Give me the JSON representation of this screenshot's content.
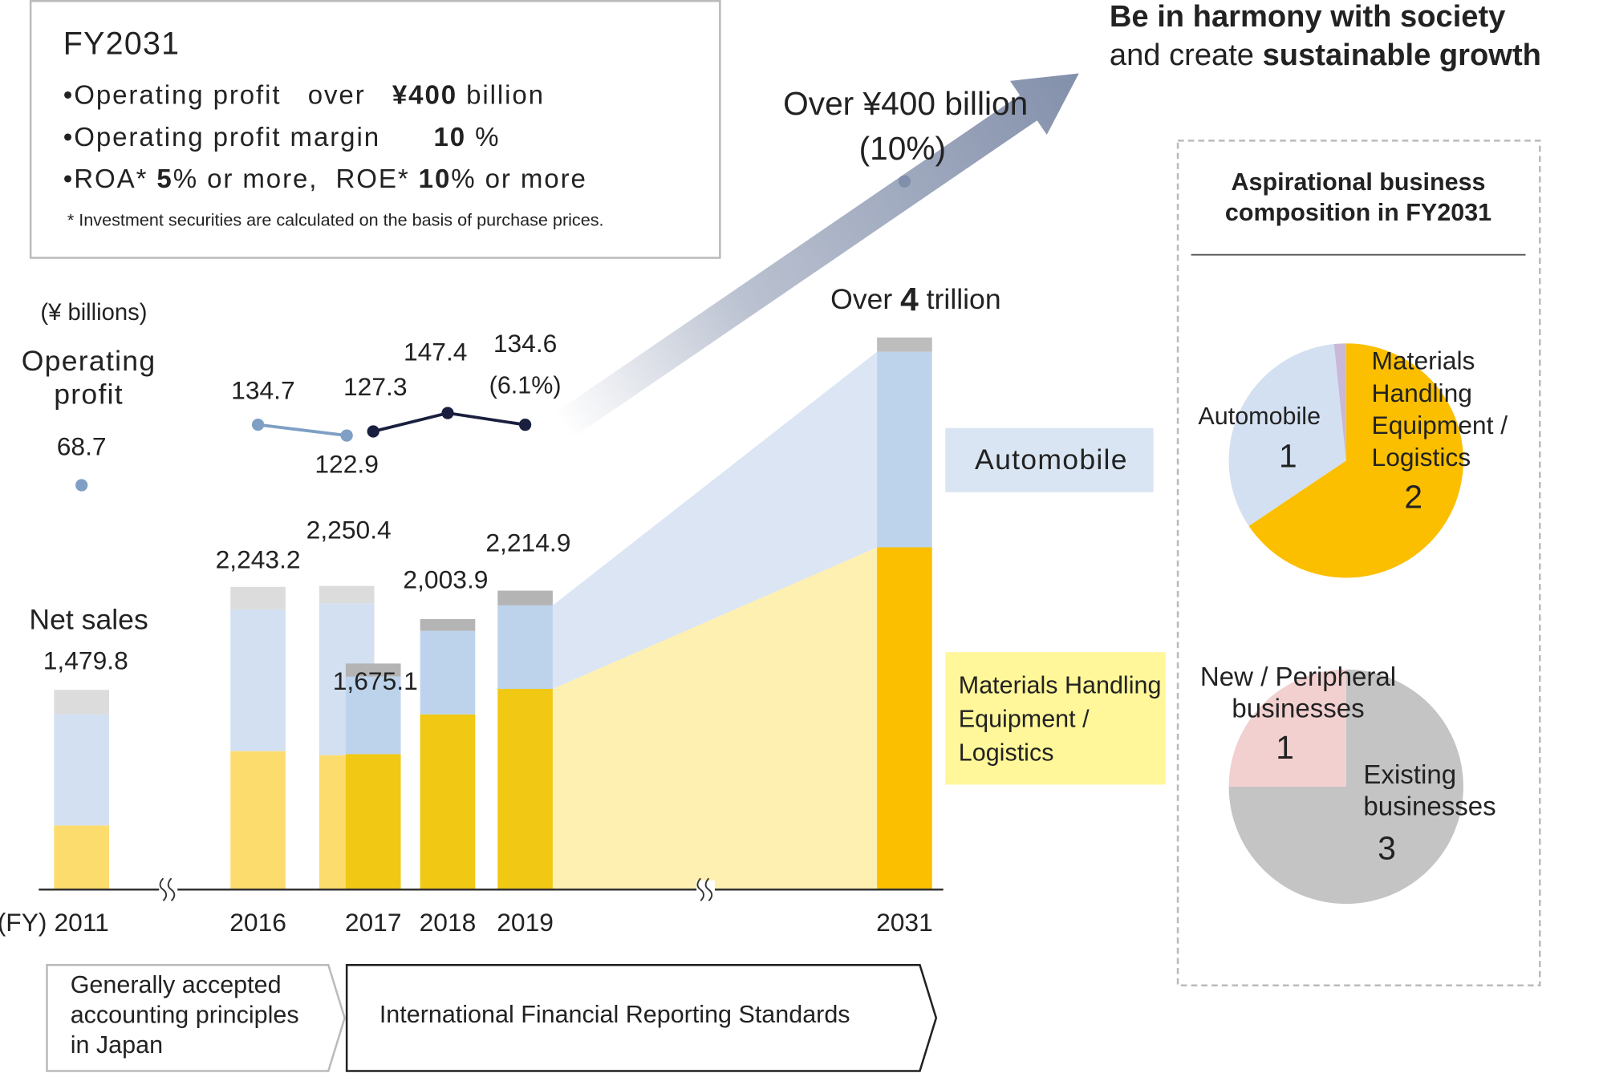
{
  "headline": {
    "lines": [
      [
        {
          "text": "Be in harmony with society",
          "bold": true
        }
      ],
      [
        {
          "text": "and create ",
          "bold": false
        },
        {
          "text": "sustainable growth",
          "bold": true
        }
      ]
    ]
  },
  "targets": {
    "title": "FY2031",
    "items": [
      [
        {
          "text": "•Operating profit   over   ",
          "bold": false
        },
        {
          "text": "¥400",
          "bold": true
        },
        {
          "text": " billion",
          "bold": false
        }
      ],
      [
        {
          "text": "•Operating profit margin      ",
          "bold": false
        },
        {
          "text": "10",
          "bold": true
        },
        {
          "text": " %",
          "bold": false
        }
      ],
      [
        {
          "text": "•ROA* ",
          "bold": false
        },
        {
          "text": "5",
          "bold": true
        },
        {
          "text": "% or more,  ROE* ",
          "bold": false
        },
        {
          "text": "10",
          "bold": true
        },
        {
          "text": "% or more",
          "bold": false
        }
      ]
    ],
    "note": "* Investment securities are calculated on the basis of purchase prices."
  },
  "standards": {
    "jgaap": [
      "Generally accepted",
      "accounting principles",
      "in Japan"
    ],
    "ifrs": "International Financial Reporting Standards"
  },
  "chart_data": [
    {
      "type": "line",
      "title": [
        "Operating",
        "profit"
      ],
      "unit": "(¥ billions)",
      "ylim": [
        40,
        160
      ],
      "series": [
        {
          "color": "#7f9fc4",
          "values": [
            68.7,
            null,
            null,
            null,
            null,
            null,
            null
          ]
        },
        {
          "color": "#7f9fc4",
          "values": [
            null,
            134.7,
            122.9,
            null,
            null,
            null,
            null
          ]
        },
        {
          "color": "#1a1f3f",
          "values": [
            null,
            null,
            null,
            127.3,
            147.4,
            134.6,
            null
          ]
        }
      ],
      "margin_label": "(6.1%)",
      "target": {
        "value": 400,
        "value_label": "Over ¥400 billion",
        "note": "(10%)",
        "color": "#8090aa"
      }
    },
    {
      "type": "bar",
      "title": "Net sales",
      "x_prefix": "(FY)",
      "categories": [
        "2011",
        "2016",
        null,
        "2017",
        "2018",
        "2019",
        "2031"
      ],
      "ylim": [
        0,
        4500
      ],
      "series": [
        {
          "name": [
            "Materials Handling",
            "Equipment /",
            "Logistics"
          ],
          "values": [
            475,
            1026,
            996,
            1004,
            1298,
            1487,
            2536
          ],
          "colors": [
            "#fddc6e",
            "#fddc6e",
            "#fddc6e",
            "#f1c814",
            "#f1c814",
            "#f1c814",
            "#fbbf00"
          ]
        },
        {
          "name": "Automobile",
          "values": [
            823,
            1049,
            1125,
            574,
            619,
            619,
            1449
          ],
          "colors": [
            "#d3e0f1",
            "#d3e0f1",
            "#d3e0f1",
            "#bdd3ec",
            "#bdd3ec",
            "#bdd3ec",
            "#bdd3ec"
          ]
        },
        {
          "values": [
            182,
            168,
            129,
            97,
            87,
            109,
            106
          ],
          "colors": [
            "#dcdcdc",
            "#dcdcdc",
            "#dcdcdc",
            "#b4b4b4",
            "#b4b4b4",
            "#b4b4b4",
            "#bdbdbd"
          ]
        }
      ],
      "totals": [
        1479.8,
        2243.2,
        2250.4,
        1675.1,
        2003.9,
        2214.9,
        null
      ],
      "total_labels": [
        "1,479.8",
        "2,243.2",
        "2,250.4",
        "1,675.1",
        "2,003.9",
        "2,214.9",
        null
      ],
      "over_label": {
        "prefix": "Over ",
        "number": "4",
        "suffix": " trillion"
      }
    },
    {
      "type": "pie",
      "title": [
        "Aspirational business",
        "composition in FY2031"
      ],
      "categories": [
        [
          "Materials",
          "Handling",
          "Equipment /",
          "Logistics"
        ],
        [
          "Automobile"
        ],
        null
      ],
      "values": [
        2,
        1,
        0.05
      ],
      "colors": [
        "#fbbf00",
        "#d3e0f1",
        "#c9b8d8"
      ]
    },
    {
      "type": "pie",
      "categories": [
        [
          "Existing",
          "businesses"
        ],
        [
          "New / Peripheral",
          "businesses"
        ]
      ],
      "values": [
        3,
        1
      ],
      "colors": [
        "#c4c4c4",
        "#f2d0d0"
      ]
    }
  ]
}
